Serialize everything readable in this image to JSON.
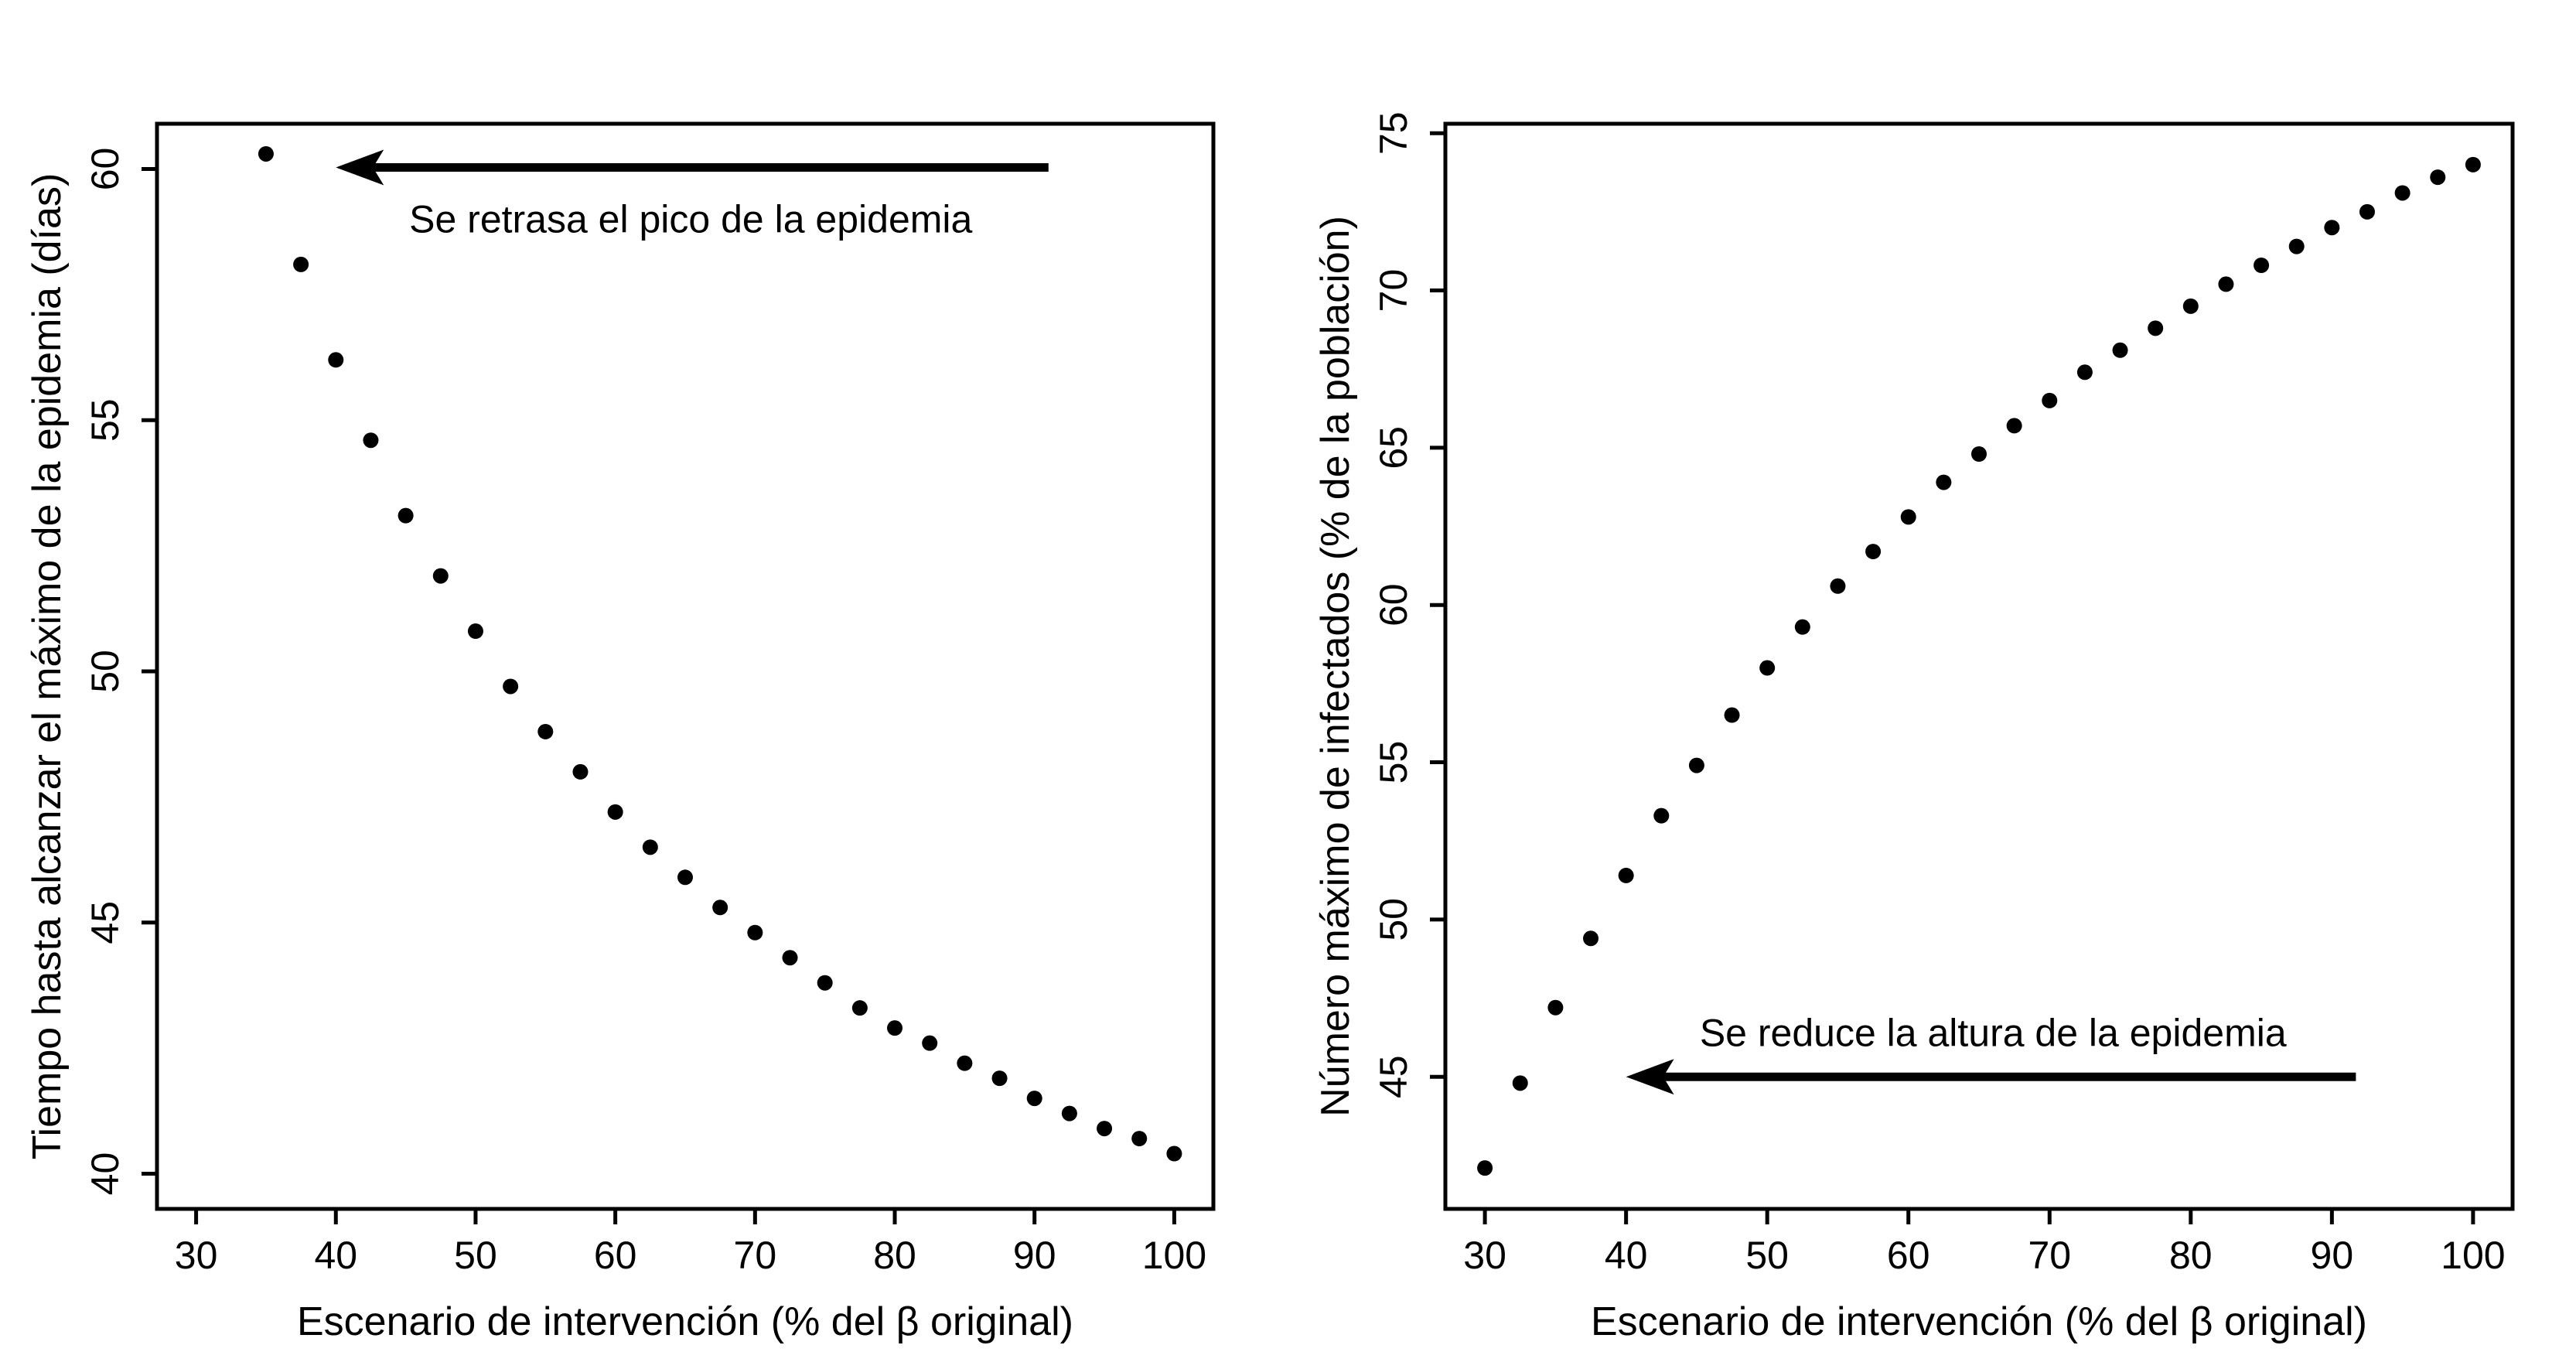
{
  "figure": {
    "background": "#ffffff",
    "foreground": "#000000",
    "point_color": "#000000"
  },
  "chart_data": [
    {
      "type": "scatter",
      "panel": "left",
      "xlabel": "Escenario de intervención (% del β original)",
      "ylabel": "Tiempo hasta alcanzar el máximo de la epidemia (días)",
      "x": [
        35,
        37.5,
        40,
        42.5,
        45,
        47.5,
        50,
        52.5,
        55,
        57.5,
        60,
        62.5,
        65,
        67.5,
        70,
        72.5,
        75,
        77.5,
        80,
        82.5,
        85,
        87.5,
        90,
        92.5,
        95,
        97.5,
        100
      ],
      "y": [
        60.3,
        58.1,
        56.2,
        54.6,
        53.1,
        51.9,
        50.8,
        49.7,
        48.8,
        48.0,
        47.2,
        46.5,
        45.9,
        45.3,
        44.8,
        44.3,
        43.8,
        43.3,
        42.9,
        42.6,
        42.2,
        41.9,
        41.5,
        41.2,
        40.9,
        40.7,
        40.4
      ],
      "xticks": [
        30,
        40,
        50,
        60,
        70,
        80,
        90,
        100
      ],
      "yticks": [
        40,
        45,
        50,
        55,
        60
      ],
      "xlim": [
        27.2,
        102.8
      ],
      "ylim": [
        39.3,
        60.9
      ],
      "grid": false,
      "annotation": {
        "text": "Se retrasa el pico de la epidemia",
        "x": 65.4,
        "y": 59.0
      },
      "arrow": {
        "y": 60.03,
        "x_tail": 91.0,
        "x_tip": 40.0,
        "direction": "left"
      }
    },
    {
      "type": "scatter",
      "panel": "right",
      "xlabel": "Escenario de intervención (% del β original)",
      "ylabel": "Número máximo de infectados (% de la población)",
      "x": [
        30,
        32.5,
        35,
        37.5,
        40,
        42.5,
        45,
        47.5,
        50,
        52.5,
        55,
        57.5,
        60,
        62.5,
        65,
        67.5,
        70,
        72.5,
        75,
        77.5,
        80,
        82.5,
        85,
        87.5,
        90,
        92.5,
        95,
        97.5,
        100
      ],
      "y": [
        42.1,
        44.8,
        47.2,
        49.4,
        51.4,
        53.3,
        54.9,
        56.5,
        58.0,
        59.3,
        60.6,
        61.7,
        62.8,
        63.9,
        64.8,
        65.7,
        66.5,
        67.4,
        68.1,
        68.8,
        69.5,
        70.2,
        70.8,
        71.4,
        72.0,
        72.5,
        73.1,
        73.6,
        74.0
      ],
      "xticks": [
        30,
        40,
        50,
        60,
        70,
        80,
        90,
        100
      ],
      "yticks": [
        45,
        50,
        55,
        60,
        65,
        70,
        75
      ],
      "xlim": [
        27.2,
        102.8
      ],
      "ylim": [
        40.8,
        75.3
      ],
      "grid": false,
      "annotation": {
        "text": "Se reduce la altura de la epidemia",
        "x": 66.0,
        "y": 46.4
      },
      "arrow": {
        "y": 45.0,
        "x_tail": 91.7,
        "x_tip": 40.0,
        "direction": "left"
      }
    }
  ]
}
